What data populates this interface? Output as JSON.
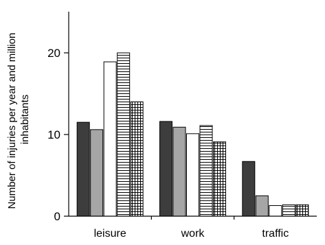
{
  "chart_data": {
    "type": "bar",
    "title": "",
    "xlabel": "",
    "ylabel": "Number of injuries per year and million inhabitants",
    "ylabel_lines": [
      "Number of injuries per year and million",
      "inhabitants"
    ],
    "ylim": [
      0,
      25
    ],
    "yticks": [
      0,
      10,
      20
    ],
    "grid": false,
    "legend": "none",
    "categories": [
      "leisure",
      "work",
      "traffic"
    ],
    "series": [
      {
        "values": [
          11.5,
          11.6,
          6.7
        ],
        "pattern": "solid",
        "fill": "#3d3d3d"
      },
      {
        "values": [
          10.6,
          10.9,
          2.5
        ],
        "pattern": "solid",
        "fill": "#a6a6a6"
      },
      {
        "values": [
          18.9,
          10.1,
          1.3
        ],
        "pattern": "solid",
        "fill": "#ffffff"
      },
      {
        "values": [
          20.0,
          11.1,
          1.4
        ],
        "pattern": "horizontal-lines",
        "fill": "#ffffff"
      },
      {
        "values": [
          14.0,
          9.1,
          1.4
        ],
        "pattern": "grid",
        "fill": "#ffffff"
      }
    ]
  }
}
